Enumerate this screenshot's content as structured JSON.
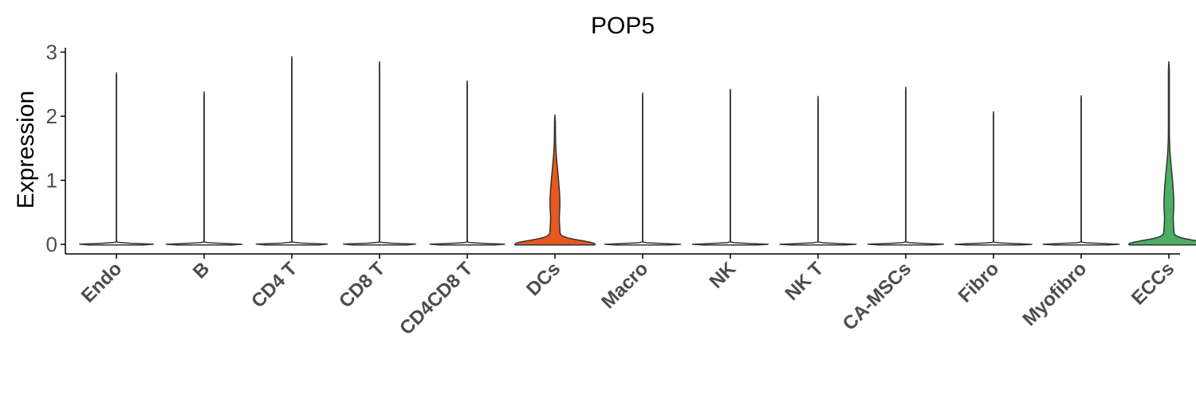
{
  "chart_data": {
    "type": "violin",
    "title": "POP5",
    "xlabel": "",
    "ylabel": "Expression",
    "ylim": [
      -0.15,
      3.05
    ],
    "yticks": [
      0,
      1,
      2,
      3
    ],
    "grid": false,
    "legend": "none",
    "categories": [
      "Endo",
      "B",
      "CD4 T",
      "CD8 T",
      "CD4CD8 T",
      "DCs",
      "Macro",
      "NK",
      "NK T",
      "CA-MSCs",
      "Fibro",
      "Myofibro",
      "ECCs"
    ],
    "series": [
      {
        "category": "Endo",
        "max": 2.68,
        "color": "#F8766D",
        "highlight": false
      },
      {
        "category": "B",
        "max": 2.38,
        "color": "#E18A00",
        "highlight": false
      },
      {
        "category": "CD4 T",
        "max": 2.93,
        "color": "#BE9C00",
        "highlight": false
      },
      {
        "category": "CD8 T",
        "max": 2.85,
        "color": "#8CAB00",
        "highlight": false
      },
      {
        "category": "CD4CD8 T",
        "max": 2.55,
        "color": "#24B700",
        "highlight": false
      },
      {
        "category": "DCs",
        "max": 2.02,
        "color": "#E8571E",
        "highlight": true
      },
      {
        "category": "Macro",
        "max": 2.36,
        "color": "#00BE70",
        "highlight": false
      },
      {
        "category": "NK",
        "max": 2.42,
        "color": "#00C1AB",
        "highlight": false
      },
      {
        "category": "NK T",
        "max": 2.31,
        "color": "#00BBDA",
        "highlight": false
      },
      {
        "category": "CA-MSCs",
        "max": 2.45,
        "color": "#00ACFC",
        "highlight": false
      },
      {
        "category": "Fibro",
        "max": 2.07,
        "color": "#8B93FF",
        "highlight": false
      },
      {
        "category": "Myofibro",
        "max": 2.32,
        "color": "#D575FE",
        "highlight": false
      },
      {
        "category": "ECCs",
        "max": 2.85,
        "color": "#4CAF63",
        "highlight": true
      }
    ]
  }
}
